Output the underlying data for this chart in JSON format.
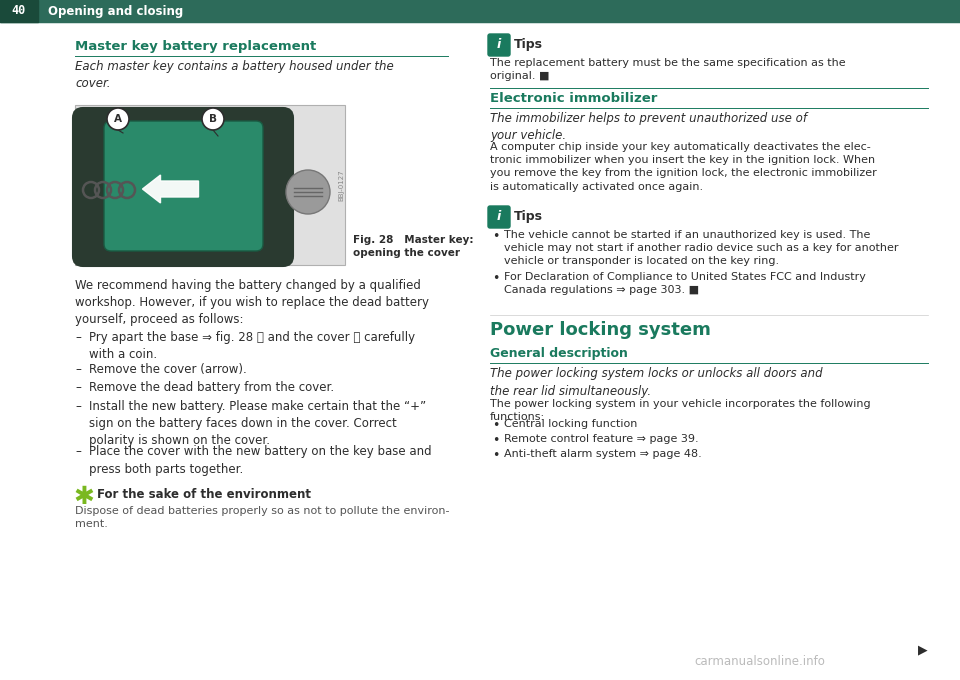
{
  "bg_color": "#ffffff",
  "header_bg": "#2d6b5a",
  "header_num": "40",
  "header_title": "Opening and closing",
  "teal": "#1a7a5e",
  "dark": "#2d2d2d",
  "gray": "#555555",
  "section1_title": "Master key battery replacement",
  "section1_italic": "Each master key contains a battery housed under the\ncover.",
  "fig_caption_bold": "Fig. 28   Master key:",
  "fig_caption_normal": "opening the cover",
  "we_recommend": "We recommend having the battery changed by a qualified\nworkshop. However, if you wish to replace the dead battery\nyourself, proceed as follows:",
  "bullet_items": [
    "Pry apart the base ⇒ fig. 28 Ⓐ and the cover Ⓑ carefully\nwith a coin.",
    "Remove the cover (arrow).",
    "Remove the dead battery from the cover.",
    "Install the new battery. Please make certain that the “+”\nsign on the battery faces down in the cover. Correct\npolarity is shown on the cover.",
    "Place the cover with the new battery on the key base and\npress both parts together."
  ],
  "env_title": "For the sake of the environment",
  "env_text": "Dispose of dead batteries properly so as not to pollute the environ-\nment.",
  "tips1_text": "The replacement battery must be the same specification as the\noriginal. ■",
  "section2_title": "Electronic immobilizer",
  "section2_italic": "The immobilizer helps to prevent unauthorized use of\nyour vehicle.",
  "section2_body": "A computer chip inside your key automatically deactivates the elec-\ntronic immobilizer when you insert the key in the ignition lock. When\nyou remove the key from the ignition lock, the electronic immobilizer\nis automatically activated once again.",
  "tips2_bullets": [
    "The vehicle cannot be started if an unauthorized key is used. The\nvehicle may not start if another radio device such as a key for another\nvehicle or transponder is located on the key ring.",
    "For Declaration of Compliance to United States FCC and Industry\nCanada regulations ⇒ page 303. ■"
  ],
  "section3_title": "Power locking system",
  "section3_sub": "General description",
  "section3_italic": "The power locking system locks or unlocks all doors and\nthe rear lid simultaneously.",
  "section3_body": "The power locking system in your vehicle incorporates the following\nfunctions:",
  "section3_bullets": [
    "Central locking function",
    "Remote control feature ⇒ page 39.",
    "Anti-theft alarm system ⇒ page 48."
  ],
  "watermark": "carmanualsonline.info",
  "key_dark": "#2a3a30",
  "key_teal": "#2a8a6a",
  "key_teal_dark": "#1a5a42",
  "coin_gray": "#9a9a9a"
}
